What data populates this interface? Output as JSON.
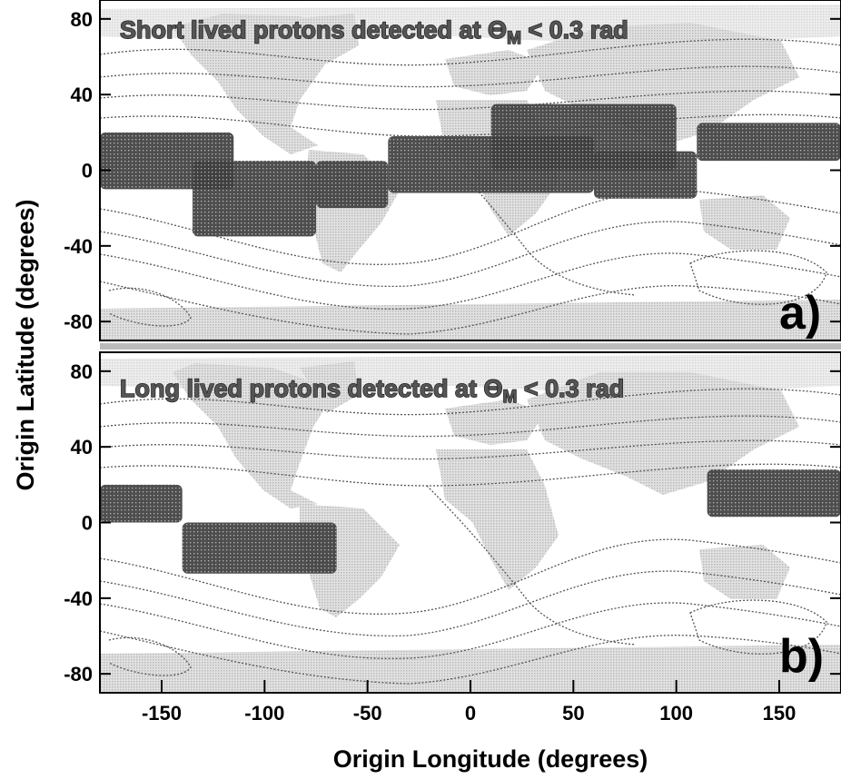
{
  "chart_data": [
    {
      "type": "scatter",
      "panel_label": "a)",
      "title": "Short lived protons detected at Θ",
      "title_subscript": "M",
      "title_suffix": " < 0.3 rad",
      "xlim": [
        -180,
        180
      ],
      "ylim": [
        -90,
        90
      ],
      "y_ticks": [
        80,
        40,
        0,
        -40,
        -80
      ],
      "background": "world map (land in light grey) with magnetic field contour lines (dotted)",
      "point_color": "#3a3a3a",
      "regions": [
        {
          "lon": [
            -180,
            -115
          ],
          "lat": [
            -10,
            20
          ]
        },
        {
          "lon": [
            -135,
            -75
          ],
          "lat": [
            -35,
            5
          ]
        },
        {
          "lon": [
            -75,
            -40
          ],
          "lat": [
            -20,
            5
          ]
        },
        {
          "lon": [
            -40,
            60
          ],
          "lat": [
            -12,
            18
          ]
        },
        {
          "lon": [
            10,
            100
          ],
          "lat": [
            0,
            35
          ]
        },
        {
          "lon": [
            60,
            110
          ],
          "lat": [
            -15,
            10
          ]
        },
        {
          "lon": [
            110,
            180
          ],
          "lat": [
            5,
            25
          ]
        }
      ]
    },
    {
      "type": "scatter",
      "panel_label": "b)",
      "title": "Long lived protons detected at Θ",
      "title_subscript": "M",
      "title_suffix": " < 0.3 rad",
      "xlim": [
        -180,
        180
      ],
      "ylim": [
        -90,
        90
      ],
      "x_ticks": [
        -150,
        -100,
        -50,
        0,
        50,
        100,
        150
      ],
      "y_ticks": [
        80,
        40,
        0,
        -40,
        -80
      ],
      "xlabel": "Origin Longitude (degrees)",
      "ylabel": "Origin Latitude (degrees)",
      "background": "world map (land in light grey) with magnetic field contour lines (dotted)",
      "point_color": "#3a3a3a",
      "regions": [
        {
          "lon": [
            -180,
            -140
          ],
          "lat": [
            0,
            20
          ]
        },
        {
          "lon": [
            -140,
            -65
          ],
          "lat": [
            -27,
            0
          ]
        },
        {
          "lon": [
            115,
            180
          ],
          "lat": [
            3,
            28
          ]
        }
      ]
    }
  ],
  "colors": {
    "land": "#d4d4d4",
    "ocean_band": "#e6e6e6",
    "points": "#3a3a3a",
    "contours": "#555555",
    "frame": "#000000"
  }
}
